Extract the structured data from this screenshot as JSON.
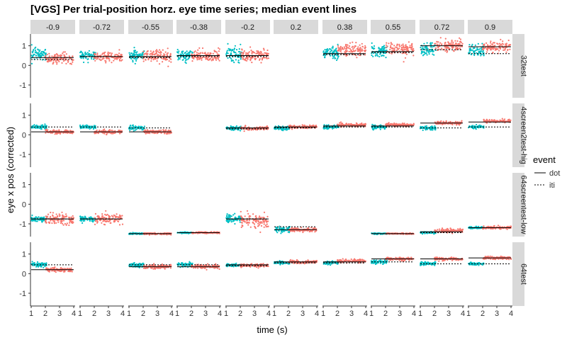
{
  "chart_data": {
    "type": "scatter",
    "title": "[VGS] Per trial-position horz. eye time series; median event lines",
    "xlabel": "time (s)",
    "ylabel": "eye x pos (corrected)",
    "xlim": [
      0.95,
      4.1
    ],
    "ylim": [
      -1.65,
      1.6
    ],
    "x_ticks": [
      1,
      2,
      3,
      4
    ],
    "y_ticks": [
      -1,
      0,
      1
    ],
    "column_facets": [
      "-0.9",
      "-0.72",
      "-0.55",
      "-0.38",
      "-0.2",
      "0.2",
      "0.38",
      "0.55",
      "0.72",
      "0.9"
    ],
    "row_facets": [
      "32test",
      "4screen2test-hig",
      "64screentest-low",
      "64test"
    ],
    "legend": {
      "title": "event",
      "placement": "right",
      "entries": [
        {
          "name": "dot",
          "line": "solid"
        },
        {
          "name": "iti",
          "line": "dashed"
        }
      ]
    },
    "colors": {
      "dot_points": "#F8766D",
      "iti_points": "#00BFC4",
      "strip_bg": "#D9D9D9"
    },
    "cells": [
      [
        {
          "dot": 0.4,
          "iti": 0.3,
          "dotMean": 0.35,
          "dotSpread": 0.28,
          "itiMean": 0.55,
          "itiSpread": 0.35
        },
        {
          "dot": 0.45,
          "iti": 0.45,
          "dotMean": 0.45,
          "dotSpread": 0.25,
          "itiMean": 0.5,
          "itiSpread": 0.25
        },
        {
          "dot": 0.45,
          "iti": 0.4,
          "dotMean": 0.45,
          "dotSpread": 0.3,
          "itiMean": 0.5,
          "itiSpread": 0.35
        },
        {
          "dot": 0.5,
          "iti": 0.45,
          "dotMean": 0.5,
          "dotSpread": 0.3,
          "itiMean": 0.5,
          "itiSpread": 0.3
        },
        {
          "dot": 0.5,
          "iti": 0.45,
          "dotMean": 0.5,
          "dotSpread": 0.35,
          "itiMean": 0.55,
          "itiSpread": 0.4
        },
        null,
        {
          "dot": 0.6,
          "iti": 0.55,
          "dotMean": 0.8,
          "dotSpread": 0.3,
          "itiMean": 0.6,
          "itiSpread": 0.3
        },
        {
          "dot": 0.7,
          "iti": 0.65,
          "dotMean": 0.85,
          "dotSpread": 0.3,
          "itiMean": 0.7,
          "itiSpread": 0.3
        },
        {
          "dot": 1.0,
          "iti": 0.8,
          "dotMean": 1.0,
          "dotSpread": 0.25,
          "itiMean": 0.8,
          "itiSpread": 0.3
        },
        {
          "dot": 0.95,
          "iti": 0.6,
          "dotMean": 0.95,
          "dotSpread": 0.3,
          "itiMean": 0.75,
          "itiSpread": 0.3
        }
      ],
      [
        {
          "dot": 0.15,
          "iti": 0.4,
          "dotMean": 0.15,
          "dotSpread": 0.1,
          "itiMean": 0.4,
          "itiSpread": 0.1
        },
        {
          "dot": 0.15,
          "iti": 0.4,
          "dotMean": 0.15,
          "dotSpread": 0.1,
          "itiMean": 0.4,
          "itiSpread": 0.1
        },
        {
          "dot": 0.15,
          "iti": 0.35,
          "dotMean": 0.15,
          "dotSpread": 0.1,
          "itiMean": 0.35,
          "itiSpread": 0.1
        },
        null,
        {
          "dot": 0.35,
          "iti": 0.3,
          "dotMean": 0.33,
          "dotSpread": 0.08,
          "itiMean": 0.33,
          "itiSpread": 0.1
        },
        {
          "dot": 0.4,
          "iti": 0.35,
          "dotMean": 0.4,
          "dotSpread": 0.08,
          "itiMean": 0.35,
          "itiSpread": 0.1
        },
        {
          "dot": 0.45,
          "iti": 0.4,
          "dotMean": 0.5,
          "dotSpread": 0.08,
          "itiMean": 0.4,
          "itiSpread": 0.1
        },
        {
          "dot": 0.45,
          "iti": 0.4,
          "dotMean": 0.5,
          "dotSpread": 0.08,
          "itiMean": 0.4,
          "itiSpread": 0.1
        },
        {
          "dot": 0.6,
          "iti": 0.35,
          "dotMean": 0.6,
          "dotSpread": 0.08,
          "itiMean": 0.35,
          "itiSpread": 0.1
        },
        {
          "dot": 0.65,
          "iti": 0.4,
          "dotMean": 0.7,
          "dotSpread": 0.08,
          "itiMean": 0.4,
          "itiSpread": 0.1
        }
      ],
      [
        {
          "dot": -0.75,
          "iti": -0.75,
          "dotMean": -0.75,
          "dotSpread": 0.3,
          "itiMean": -0.75,
          "itiSpread": 0.15
        },
        {
          "dot": -0.75,
          "iti": -0.75,
          "dotMean": -0.75,
          "dotSpread": 0.25,
          "itiMean": -0.75,
          "itiSpread": 0.15
        },
        {
          "dot": -1.5,
          "iti": -1.5,
          "dotMean": -1.5,
          "dotSpread": 0.04,
          "itiMean": -1.5,
          "itiSpread": 0.04
        },
        {
          "dot": -1.45,
          "iti": -1.45,
          "dotMean": -1.45,
          "dotSpread": 0.04,
          "itiMean": -1.45,
          "itiSpread": 0.04
        },
        {
          "dot": -0.75,
          "iti": -0.75,
          "dotMean": -0.85,
          "dotSpread": 0.35,
          "itiMean": -0.75,
          "itiSpread": 0.2
        },
        {
          "dot": -1.3,
          "iti": -1.15,
          "dotMean": -1.3,
          "dotSpread": 0.1,
          "itiMean": -1.3,
          "itiSpread": 0.15
        },
        null,
        {
          "dot": -1.5,
          "iti": -1.5,
          "dotMean": -1.5,
          "dotSpread": 0.03,
          "itiMean": -1.5,
          "itiSpread": 0.03
        },
        {
          "dot": -1.4,
          "iti": -1.45,
          "dotMean": -1.35,
          "dotSpread": 0.1,
          "itiMean": -1.45,
          "itiSpread": 0.05
        },
        {
          "dot": -1.2,
          "iti": -1.2,
          "dotMean": -1.2,
          "dotSpread": 0.08,
          "itiMean": -1.2,
          "itiSpread": 0.05
        }
      ],
      [
        {
          "dot": 0.2,
          "iti": 0.45,
          "dotMean": 0.2,
          "dotSpread": 0.1,
          "itiMean": 0.45,
          "itiSpread": 0.1
        },
        null,
        {
          "dot": 0.35,
          "iti": 0.45,
          "dotMean": 0.35,
          "dotSpread": 0.1,
          "itiMean": 0.45,
          "itiSpread": 0.1
        },
        {
          "dot": 0.35,
          "iti": 0.45,
          "dotMean": 0.35,
          "dotSpread": 0.1,
          "itiMean": 0.45,
          "itiSpread": 0.1
        },
        {
          "dot": 0.45,
          "iti": 0.4,
          "dotMean": 0.42,
          "dotSpread": 0.08,
          "itiMean": 0.42,
          "itiSpread": 0.08
        },
        {
          "dot": 0.6,
          "iti": 0.55,
          "dotMean": 0.6,
          "dotSpread": 0.08,
          "itiMean": 0.55,
          "itiSpread": 0.08
        },
        {
          "dot": 0.6,
          "iti": 0.55,
          "dotMean": 0.65,
          "dotSpread": 0.08,
          "itiMean": 0.55,
          "itiSpread": 0.1
        },
        {
          "dot": 0.75,
          "iti": 0.6,
          "dotMean": 0.75,
          "dotSpread": 0.08,
          "itiMean": 0.6,
          "itiSpread": 0.1
        },
        {
          "dot": 0.75,
          "iti": 0.5,
          "dotMean": 0.75,
          "dotSpread": 0.08,
          "itiMean": 0.5,
          "itiSpread": 0.08
        },
        {
          "dot": 0.8,
          "iti": 0.5,
          "dotMean": 0.8,
          "dotSpread": 0.08,
          "itiMean": 0.5,
          "itiSpread": 0.08
        }
      ]
    ]
  }
}
